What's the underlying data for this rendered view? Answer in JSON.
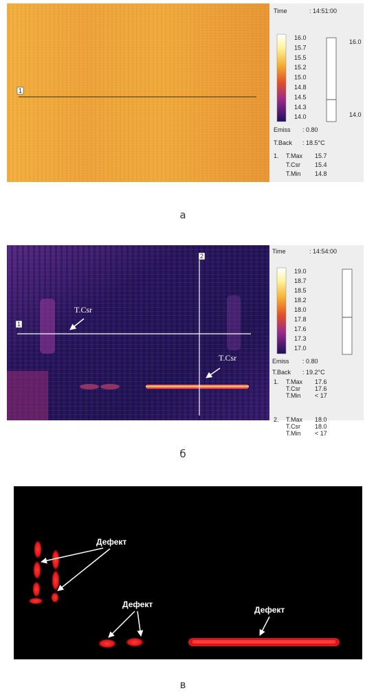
{
  "panels": [
    {
      "caption": "а",
      "time_label": "Time",
      "time_value": ": 14:51:00",
      "scale_labels": [
        "16.0",
        "15.7",
        "15.5",
        "15.2",
        "15.0",
        "14.8",
        "14.5",
        "14.3",
        "14.0"
      ],
      "gauge_labels": [
        "16.0",
        "14.0"
      ],
      "emiss_label": "Emiss",
      "emiss_value": ": 0.80",
      "back_label": "T.Back",
      "back_value": ": 18.5°C",
      "image_markers": [
        "1"
      ],
      "readouts": [
        {
          "index": "1.",
          "rows": [
            [
              "T.Max",
              "15.7"
            ],
            [
              "T.Csr",
              "15.4"
            ],
            [
              "T.Min",
              "14.8"
            ]
          ]
        }
      ]
    },
    {
      "caption": "б",
      "time_label": "Time",
      "time_value": ": 14:54:00",
      "scale_labels": [
        "19.0",
        "18.7",
        "18.5",
        "18.2",
        "18.0",
        "17.8",
        "17.6",
        "17.3",
        "17.0"
      ],
      "emiss_label": "Emiss",
      "emiss_value": ": 0.80",
      "back_label": "T.Back",
      "back_value": ": 19.2°C",
      "image_markers": [
        "1",
        "2"
      ],
      "image_annotations": [
        "T.Csr",
        "T.Csr"
      ],
      "readouts": [
        {
          "index": "1.",
          "rows": [
            [
              "T.Max",
              "17.6"
            ],
            [
              "T.Csr",
              "17.6"
            ],
            [
              "T.Min",
              "< 17"
            ]
          ]
        },
        {
          "index": "2.",
          "rows": [
            [
              "T.Max",
              "18.0"
            ],
            [
              "T.Csr",
              "18.0"
            ],
            [
              "T.Min",
              "< 17"
            ]
          ]
        }
      ]
    },
    {
      "caption": "в",
      "image_annotations": [
        "Дефект",
        "Дефект",
        "Дефект"
      ]
    }
  ]
}
